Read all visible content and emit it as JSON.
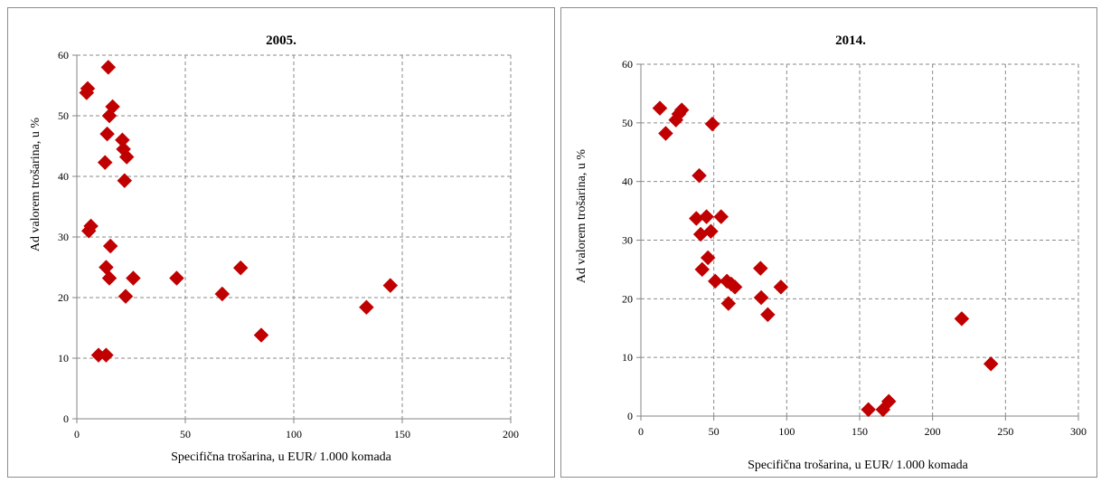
{
  "chart_data": [
    {
      "type": "scatter",
      "title": "2005.",
      "xlabel": "Specifična trošarina, u EUR/ 1.000 komada",
      "ylabel": "Ad valorem trošarina, u %",
      "xlim": [
        0,
        200
      ],
      "ylim": [
        0,
        60
      ],
      "xticks": [
        0,
        50,
        100,
        150,
        200
      ],
      "yticks": [
        0,
        10,
        20,
        30,
        40,
        50,
        60
      ],
      "grid": true,
      "marker": "diamond",
      "color": "#c00000",
      "points": [
        [
          14.5,
          58.0
        ],
        [
          5.0,
          54.5
        ],
        [
          4.5,
          53.8
        ],
        [
          16.5,
          51.5
        ],
        [
          15.0,
          50.0
        ],
        [
          14.0,
          47.0
        ],
        [
          21.0,
          46.0
        ],
        [
          21.5,
          44.5
        ],
        [
          23.0,
          43.2
        ],
        [
          13.0,
          42.3
        ],
        [
          22.0,
          39.3
        ],
        [
          6.5,
          31.8
        ],
        [
          5.5,
          31.0
        ],
        [
          15.5,
          28.5
        ],
        [
          13.5,
          25.0
        ],
        [
          15.0,
          23.2
        ],
        [
          26.0,
          23.2
        ],
        [
          46.0,
          23.2
        ],
        [
          22.5,
          20.2
        ],
        [
          67.0,
          20.6
        ],
        [
          75.5,
          24.9
        ],
        [
          10.0,
          10.5
        ],
        [
          13.5,
          10.5
        ],
        [
          85.0,
          13.8
        ],
        [
          133.5,
          18.4
        ],
        [
          144.5,
          22.0
        ]
      ]
    },
    {
      "type": "scatter",
      "title": "2014.",
      "xlabel": "Specifična trošarina, u EUR/ 1.000 komada",
      "ylabel": "Ad valorem trošarina, u %",
      "xlim": [
        0,
        300
      ],
      "ylim": [
        0,
        60
      ],
      "xticks": [
        0,
        50,
        100,
        150,
        200,
        250,
        300
      ],
      "yticks": [
        0,
        10,
        20,
        30,
        40,
        50,
        60
      ],
      "grid": true,
      "marker": "diamond",
      "color": "#c00000",
      "points": [
        [
          13.0,
          52.5
        ],
        [
          17.0,
          48.2
        ],
        [
          24.0,
          50.5
        ],
        [
          26.0,
          51.5
        ],
        [
          28.0,
          52.2
        ],
        [
          49.0,
          49.8
        ],
        [
          40.0,
          41.0
        ],
        [
          38.0,
          33.7
        ],
        [
          45.0,
          34.0
        ],
        [
          55.0,
          34.0
        ],
        [
          41.0,
          31.0
        ],
        [
          48.0,
          31.5
        ],
        [
          46.0,
          27.0
        ],
        [
          42.0,
          25.0
        ],
        [
          51.0,
          23.0
        ],
        [
          59.0,
          23.0
        ],
        [
          62.0,
          22.5
        ],
        [
          64.5,
          22.0
        ],
        [
          60.0,
          19.2
        ],
        [
          82.0,
          25.2
        ],
        [
          82.5,
          20.2
        ],
        [
          87.0,
          17.3
        ],
        [
          96.0,
          22.0
        ],
        [
          220.0,
          16.6
        ],
        [
          240.0,
          8.9
        ],
        [
          156.0,
          1.1
        ],
        [
          166.0,
          1.1
        ],
        [
          170.0,
          2.5
        ]
      ]
    }
  ]
}
